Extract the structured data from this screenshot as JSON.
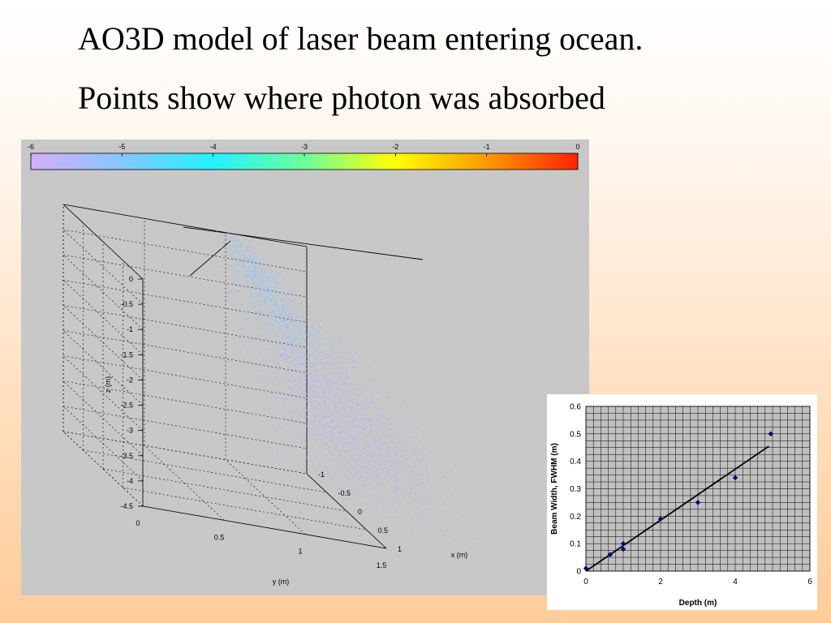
{
  "slide": {
    "title_line1": "AO3D model of laser beam entering ocean.",
    "title_line2": "Points show where photon was absorbed"
  },
  "chart_data": [
    {
      "type": "scatter",
      "subtype": "3d",
      "colorbar": {
        "ticks": [
          "-6",
          "-5",
          "-4",
          "-3",
          "-2",
          "-1",
          "0"
        ],
        "range": [
          -6,
          0
        ],
        "colors": [
          "#d7adff",
          "#85c7ff",
          "#24f2ff",
          "#6dff9a",
          "#ffff00",
          "#ff9900",
          "#ff2200"
        ]
      },
      "xlabel": "x (m)",
      "ylabel": "y (m)",
      "zlabel": "z (m)",
      "x_ticks": [
        "-1",
        "-0.5",
        "0",
        "0.5",
        "1"
      ],
      "y_ticks": [
        "0",
        "0.5",
        "1",
        "1.5"
      ],
      "z_ticks": [
        "0",
        "-0.5",
        "-1",
        "-1.5",
        "-2",
        "-2.5",
        "-3",
        "-3.5",
        "-4",
        "-4.5"
      ],
      "xlim": [
        -1,
        1
      ],
      "ylim": [
        0,
        1.5
      ],
      "zlim": [
        -4.5,
        0
      ],
      "grid": true,
      "background": "#c8c8c8"
    },
    {
      "type": "scatter",
      "xlabel": "Depth (m)",
      "ylabel": "Beam Width, FWHM (m)",
      "xlim": [
        0,
        6
      ],
      "ylim": [
        0,
        0.6
      ],
      "x_ticks": [
        "0",
        "2",
        "4",
        "6"
      ],
      "y_ticks": [
        "0",
        "0.1",
        "0.2",
        "0.3",
        "0.4",
        "0.5",
        "0.6"
      ],
      "points": [
        {
          "x": 0,
          "y": 0.01
        },
        {
          "x": 0.65,
          "y": 0.06
        },
        {
          "x": 1.0,
          "y": 0.08
        },
        {
          "x": 1.0,
          "y": 0.1
        },
        {
          "x": 2.0,
          "y": 0.19
        },
        {
          "x": 3.0,
          "y": 0.25
        },
        {
          "x": 4.0,
          "y": 0.34
        },
        {
          "x": 4.95,
          "y": 0.5
        }
      ],
      "trendline": {
        "x": [
          0,
          4.9
        ],
        "y": [
          0,
          0.455
        ]
      },
      "grid": true,
      "marker_color": "#00007f",
      "plot_background": "#c0c0c0"
    }
  ]
}
